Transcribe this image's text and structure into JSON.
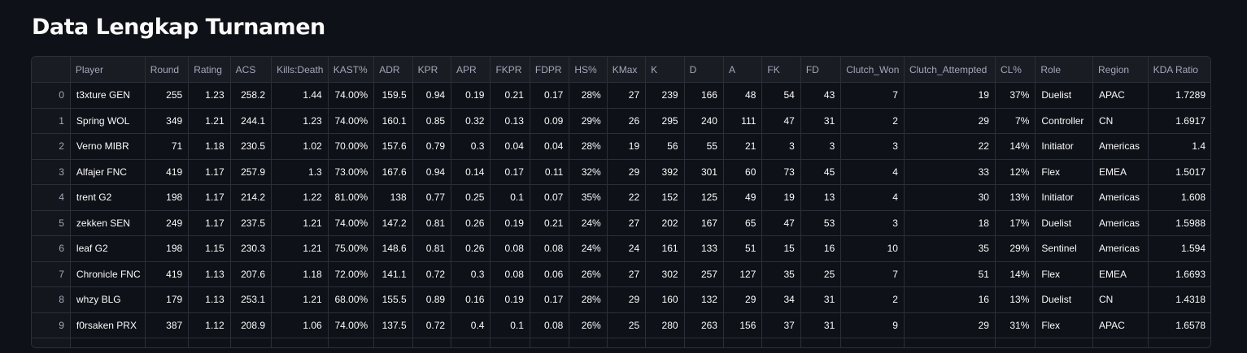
{
  "page": {
    "title": "Data Lengkap Turnamen"
  },
  "table": {
    "columns": [
      "",
      "Player",
      "Round",
      "Rating",
      "ACS",
      "Kills:Death",
      "KAST%",
      "ADR",
      "KPR",
      "APR",
      "FKPR",
      "FDPR",
      "HS%",
      "KMax",
      "K",
      "D",
      "A",
      "FK",
      "FD",
      "Clutch_Won",
      "Clutch_Attempted",
      "CL%",
      "Role",
      "Region",
      "KDA Ratio"
    ],
    "rows": [
      [
        "0",
        "t3xture GEN",
        "255",
        "1.23",
        "258.2",
        "1.44",
        "74.00%",
        "159.5",
        "0.94",
        "0.19",
        "0.21",
        "0.17",
        "28%",
        "27",
        "239",
        "166",
        "48",
        "54",
        "43",
        "7",
        "19",
        "37%",
        "Duelist",
        "APAC",
        "1.7289"
      ],
      [
        "1",
        "Spring WOL",
        "349",
        "1.21",
        "244.1",
        "1.23",
        "74.00%",
        "160.1",
        "0.85",
        "0.32",
        "0.13",
        "0.09",
        "29%",
        "26",
        "295",
        "240",
        "111",
        "47",
        "31",
        "2",
        "29",
        "7%",
        "Controller",
        "CN",
        "1.6917"
      ],
      [
        "2",
        "Verno MIBR",
        "71",
        "1.18",
        "230.5",
        "1.02",
        "70.00%",
        "157.6",
        "0.79",
        "0.3",
        "0.04",
        "0.04",
        "28%",
        "19",
        "56",
        "55",
        "21",
        "3",
        "3",
        "3",
        "22",
        "14%",
        "Initiator",
        "Americas",
        "1.4"
      ],
      [
        "3",
        "Alfajer FNC",
        "419",
        "1.17",
        "257.9",
        "1.3",
        "73.00%",
        "167.6",
        "0.94",
        "0.14",
        "0.17",
        "0.11",
        "32%",
        "29",
        "392",
        "301",
        "60",
        "73",
        "45",
        "4",
        "33",
        "12%",
        "Flex",
        "EMEA",
        "1.5017"
      ],
      [
        "4",
        "trent G2",
        "198",
        "1.17",
        "214.2",
        "1.22",
        "81.00%",
        "138",
        "0.77",
        "0.25",
        "0.1",
        "0.07",
        "35%",
        "22",
        "152",
        "125",
        "49",
        "19",
        "13",
        "4",
        "30",
        "13%",
        "Initiator",
        "Americas",
        "1.608"
      ],
      [
        "5",
        "zekken SEN",
        "249",
        "1.17",
        "237.5",
        "1.21",
        "74.00%",
        "147.2",
        "0.81",
        "0.26",
        "0.19",
        "0.21",
        "24%",
        "27",
        "202",
        "167",
        "65",
        "47",
        "53",
        "3",
        "18",
        "17%",
        "Duelist",
        "Americas",
        "1.5988"
      ],
      [
        "6",
        "leaf G2",
        "198",
        "1.15",
        "230.3",
        "1.21",
        "75.00%",
        "148.6",
        "0.81",
        "0.26",
        "0.08",
        "0.08",
        "24%",
        "24",
        "161",
        "133",
        "51",
        "15",
        "16",
        "10",
        "35",
        "29%",
        "Sentinel",
        "Americas",
        "1.594"
      ],
      [
        "7",
        "Chronicle FNC",
        "419",
        "1.13",
        "207.6",
        "1.18",
        "72.00%",
        "141.1",
        "0.72",
        "0.3",
        "0.08",
        "0.06",
        "26%",
        "27",
        "302",
        "257",
        "127",
        "35",
        "25",
        "7",
        "51",
        "14%",
        "Flex",
        "EMEA",
        "1.6693"
      ],
      [
        "8",
        "whzy BLG",
        "179",
        "1.13",
        "253.1",
        "1.21",
        "68.00%",
        "155.5",
        "0.89",
        "0.16",
        "0.19",
        "0.17",
        "28%",
        "29",
        "160",
        "132",
        "29",
        "34",
        "31",
        "2",
        "16",
        "13%",
        "Duelist",
        "CN",
        "1.4318"
      ],
      [
        "9",
        "f0rsaken PRX",
        "387",
        "1.12",
        "208.9",
        "1.06",
        "74.00%",
        "137.5",
        "0.72",
        "0.4",
        "0.1",
        "0.08",
        "26%",
        "25",
        "280",
        "263",
        "156",
        "37",
        "31",
        "9",
        "29",
        "31%",
        "Flex",
        "APAC",
        "1.6578"
      ]
    ]
  },
  "colors": {
    "background": "#0e1117",
    "header_bg": "#1a1c24",
    "grid": "#2c2f38",
    "text": "#fafafa",
    "muted": "#a3a8b8"
  }
}
